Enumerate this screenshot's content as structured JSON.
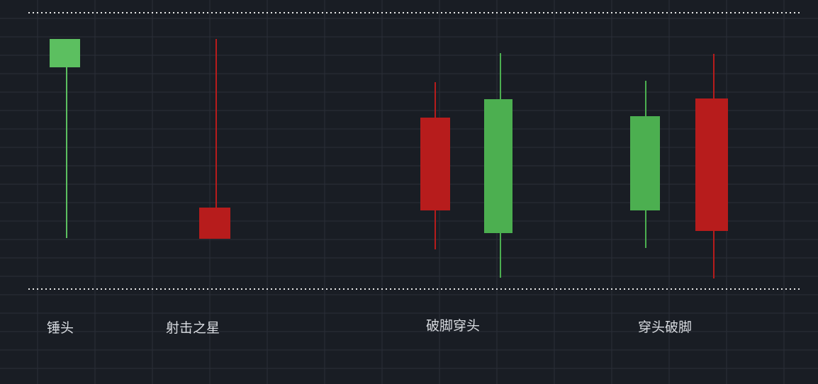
{
  "colors": {
    "background": "#191d24",
    "grid": "#2a2f38",
    "separator": "#e8e8e8",
    "bullish": "#4caf50",
    "bullish_light": "#5cbf60",
    "bearish": "#b71c1c"
  },
  "patterns": [
    {
      "label": "锤头"
    },
    {
      "label": "射击之星"
    },
    {
      "label": "破脚穿头"
    },
    {
      "label": "穿头破脚"
    }
  ]
}
